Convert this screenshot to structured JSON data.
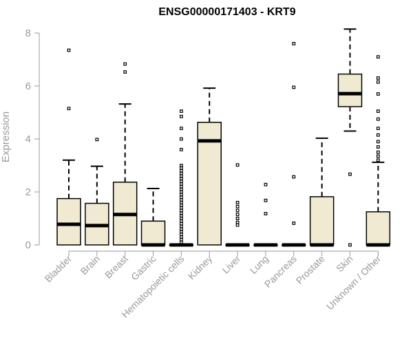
{
  "chart_data": {
    "type": "box",
    "title": "ENSG00000171403 - KRT9",
    "xlabel": "",
    "ylabel": "Expression",
    "ylim": [
      0,
      8
    ],
    "yticks": [
      0,
      2,
      4,
      6,
      8
    ],
    "categories": [
      "Bladder",
      "Brain",
      "Breast",
      "Gastric",
      "Hematopoietic cells",
      "Kidney",
      "Liver",
      "Lung",
      "Pancreas",
      "Prostate",
      "Skin",
      "Unknown / Other"
    ],
    "boxes": [
      {
        "category": "Bladder",
        "q1": 0.0,
        "median": 0.78,
        "q3": 1.75,
        "whisker_low": 0.0,
        "whisker_high": 3.2,
        "outliers": [
          5.15,
          7.35
        ]
      },
      {
        "category": "Brain",
        "q1": 0.0,
        "median": 0.73,
        "q3": 1.57,
        "whisker_low": 0.0,
        "whisker_high": 2.97,
        "outliers": [
          3.98
        ]
      },
      {
        "category": "Breast",
        "q1": 0.0,
        "median": 1.15,
        "q3": 2.37,
        "whisker_low": 0.0,
        "whisker_high": 5.32,
        "outliers": [
          6.53,
          6.83
        ]
      },
      {
        "category": "Gastric",
        "q1": 0.0,
        "median": 0.0,
        "q3": 0.9,
        "whisker_low": 0.0,
        "whisker_high": 2.13,
        "outliers": []
      },
      {
        "category": "Hematopoietic cells",
        "q1": 0.0,
        "median": 0.0,
        "q3": 0.0,
        "whisker_low": 0.0,
        "whisker_high": 0.0,
        "outliers": [
          0.1,
          0.2,
          0.3,
          0.4,
          0.5,
          0.6,
          0.7,
          0.8,
          0.9,
          1.0,
          1.1,
          1.2,
          1.3,
          1.4,
          1.5,
          1.6,
          1.7,
          1.8,
          1.9,
          2.0,
          2.1,
          2.2,
          2.3,
          2.4,
          2.5,
          2.6,
          2.7,
          2.8,
          2.9,
          3.0,
          3.6,
          4.0,
          4.4,
          4.85,
          5.05
        ]
      },
      {
        "category": "Kidney",
        "q1": 0.0,
        "median": 3.93,
        "q3": 4.63,
        "whisker_low": 0.0,
        "whisker_high": 5.92,
        "outliers": []
      },
      {
        "category": "Liver",
        "q1": 0.0,
        "median": 0.0,
        "q3": 0.0,
        "whisker_low": 0.0,
        "whisker_high": 0.0,
        "outliers": [
          0.75,
          0.85,
          1.0,
          1.15,
          1.3,
          1.45,
          1.6,
          3.02
        ]
      },
      {
        "category": "Lung",
        "q1": 0.0,
        "median": 0.0,
        "q3": 0.0,
        "whisker_low": 0.0,
        "whisker_high": 0.0,
        "outliers": [
          1.18,
          1.68,
          2.28
        ]
      },
      {
        "category": "Pancreas",
        "q1": 0.0,
        "median": 0.0,
        "q3": 0.0,
        "whisker_low": 0.0,
        "whisker_high": 0.0,
        "outliers": [
          0.82,
          2.57,
          5.95,
          7.6
        ]
      },
      {
        "category": "Prostate",
        "q1": 0.0,
        "median": 0.0,
        "q3": 1.82,
        "whisker_low": 0.0,
        "whisker_high": 4.03,
        "outliers": []
      },
      {
        "category": "Skin",
        "q1": 5.22,
        "median": 5.71,
        "q3": 6.45,
        "whisker_low": 4.3,
        "whisker_high": 8.15,
        "outliers": [
          0.0,
          2.67
        ]
      },
      {
        "category": "Unknown / Other",
        "q1": 0.0,
        "median": 0.0,
        "q3": 1.25,
        "whisker_low": 0.0,
        "whisker_high": 3.12,
        "outliers": [
          3.2,
          3.35,
          3.5,
          3.7,
          3.9,
          4.15,
          4.4,
          4.75,
          5.05,
          5.7,
          6.15,
          6.3,
          7.1
        ]
      }
    ],
    "grid": false,
    "legend": "none",
    "colors": {
      "box_fill": "#f0ead2",
      "box_stroke": "#000000",
      "axis": "#999999",
      "text": "#999999",
      "title": "#000000"
    }
  }
}
